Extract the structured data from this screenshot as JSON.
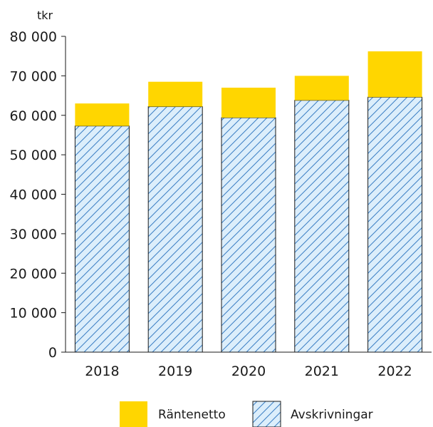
{
  "chart_data": {
    "type": "bar",
    "stacked": true,
    "title": "",
    "xlabel": "",
    "ylabel": "tkr",
    "categories": [
      "2018",
      "2019",
      "2020",
      "2021",
      "2022"
    ],
    "series": [
      {
        "name": "Avskrivningar",
        "values": [
          57300,
          62200,
          59400,
          63800,
          64600
        ],
        "color": "#dceefb",
        "pattern": "diagonal-hatch"
      },
      {
        "name": "Räntenetto",
        "values": [
          5700,
          6300,
          7600,
          6200,
          11600
        ],
        "color": "#ffd600"
      }
    ],
    "ylim": [
      0,
      80000
    ],
    "yticks": [
      0,
      10000,
      20000,
      30000,
      40000,
      50000,
      60000,
      70000,
      80000
    ],
    "ytick_labels": [
      "0",
      "10 000",
      "20 000",
      "30 000",
      "40 000",
      "50 000",
      "60 000",
      "70 000",
      "80 000"
    ],
    "grid": false,
    "legend": {
      "position": "bottom",
      "order": [
        "Räntenetto",
        "Avskrivningar"
      ]
    }
  }
}
